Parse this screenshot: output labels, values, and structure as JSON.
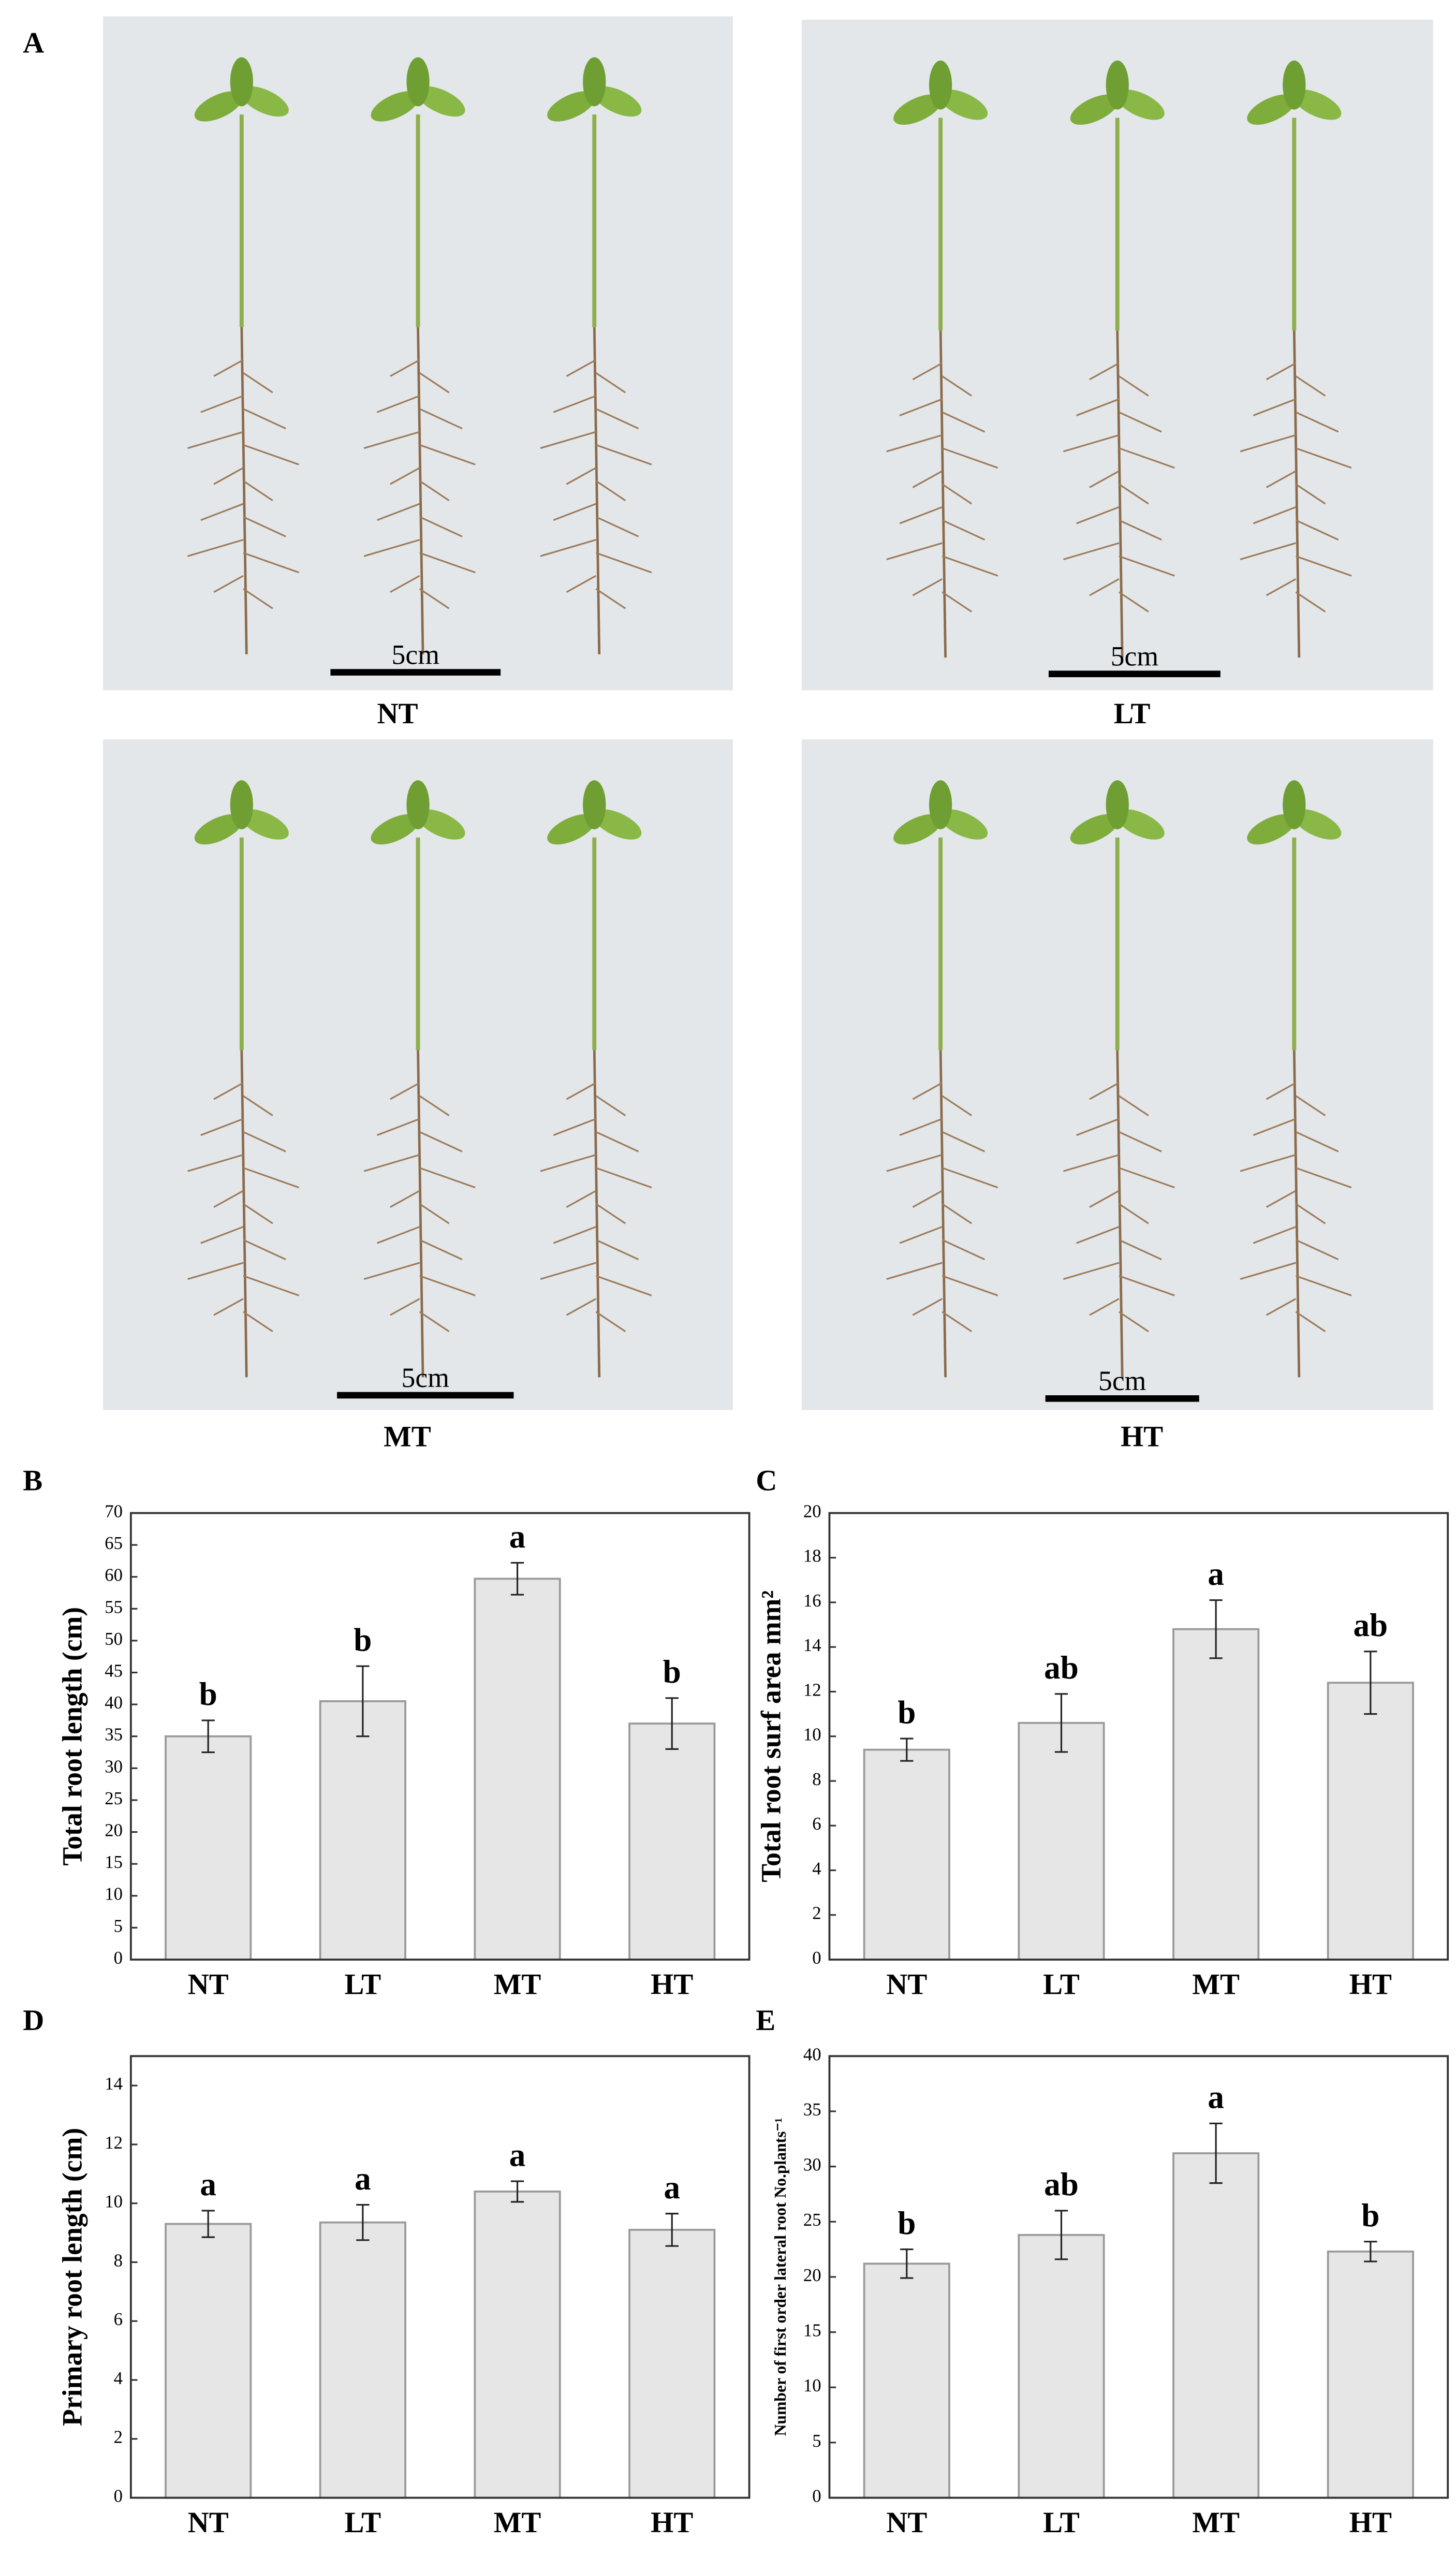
{
  "figure_label": "A",
  "photo_panels": [
    {
      "label": "NT",
      "scale_bar": "5cm"
    },
    {
      "label": "LT",
      "scale_bar": "5cm"
    },
    {
      "label": "MT",
      "scale_bar": "5cm"
    },
    {
      "label": "HT",
      "scale_bar": "5cm"
    }
  ],
  "chart_data": [
    {
      "type": "bar",
      "panel_label": "B",
      "y_label": "Total root length (cm)",
      "categories": [
        "NT",
        "LT",
        "MT",
        "HT"
      ],
      "values": [
        35,
        40.5,
        59.7,
        37
      ],
      "errors": [
        2.5,
        5.5,
        2.5,
        4
      ],
      "annotations": [
        "b",
        "b",
        "a",
        "b"
      ],
      "color": "#e6e6e6",
      "ylim": [
        0,
        70
      ],
      "yticks": [
        0,
        5,
        10,
        15,
        20,
        25,
        30,
        35,
        40,
        45,
        50,
        55,
        60,
        65,
        70
      ]
    },
    {
      "type": "bar",
      "panel_label": "C",
      "y_label": "Total root surf area mm²",
      "categories": [
        "NT",
        "LT",
        "MT",
        "HT"
      ],
      "values": [
        9.4,
        10.6,
        14.8,
        12.4
      ],
      "errors": [
        0.5,
        1.3,
        1.3,
        1.4
      ],
      "annotations": [
        "b",
        "ab",
        "a",
        "ab"
      ],
      "color": "#e6e6e6",
      "ylim": [
        0,
        20
      ],
      "yticks": [
        0,
        2,
        4,
        6,
        8,
        10,
        12,
        14,
        16,
        18,
        20
      ]
    },
    {
      "type": "bar",
      "panel_label": "D",
      "y_label": "Primary root length (cm)",
      "categories": [
        "NT",
        "LT",
        "MT",
        "HT"
      ],
      "values": [
        9.3,
        9.35,
        10.4,
        9.1
      ],
      "errors": [
        0.45,
        0.6,
        0.35,
        0.55
      ],
      "annotations": [
        "a",
        "a",
        "a",
        "a"
      ],
      "color": "#e6e6e6",
      "ylim": [
        0,
        15
      ],
      "yticks": [
        0,
        2,
        4,
        6,
        8,
        10,
        12,
        14
      ]
    },
    {
      "type": "bar",
      "panel_label": "E",
      "y_label": "Number of first order lateral root No.plants⁻¹",
      "categories": [
        "NT",
        "LT",
        "MT",
        "HT"
      ],
      "values": [
        21.2,
        23.8,
        31.2,
        22.3
      ],
      "errors": [
        1.3,
        2.2,
        2.7,
        0.9
      ],
      "annotations": [
        "b",
        "ab",
        "a",
        "b"
      ],
      "color": "#e6e6e6",
      "ylim": [
        0,
        40
      ],
      "yticks": [
        0,
        5,
        10,
        15,
        20,
        25,
        30,
        35,
        40
      ]
    }
  ]
}
